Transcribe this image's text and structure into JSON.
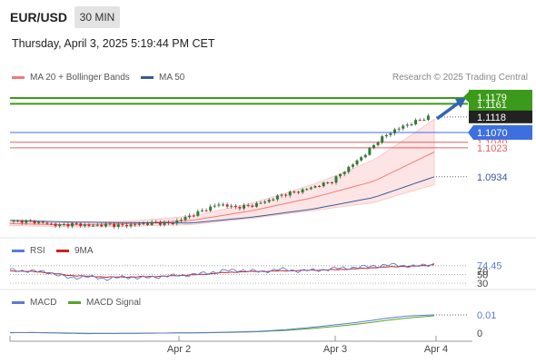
{
  "header": {
    "symbol": "EUR/USD",
    "timeframe": "30 MIN",
    "datetime": "Thursday, April 3, 2025 5:19:44 PM CET"
  },
  "legend": {
    "ma20_label": "MA 20 + Bollinger Bands",
    "ma50_label": "MA 50",
    "source": "Research © 2025 Trading Central",
    "rsi_label": "RSI",
    "rsi_ma_label": "9MA",
    "macd_label": "MACD",
    "macd_signal_label": "MACD Signal"
  },
  "colors": {
    "ma20": "#f07a7a",
    "ma50": "#3b5998",
    "candle_up": "#2e7d32",
    "candle_down": "#c62828",
    "resistance": "#3c9a1a",
    "support_blue": "#3d6fe0",
    "support_red": "#e36060",
    "arrow": "#2f66b3",
    "rsi": "#5b7bd6",
    "rsi_ma": "#cc2222",
    "macd": "#5b7bd6",
    "macd_signal": "#55a52a"
  },
  "price_labels": {
    "resistance_1": "1.1179",
    "resistance_2": "1.1161",
    "last_price": "1.1118",
    "pivot": "1.1070",
    "support_1": "1.1040",
    "support_2": "1.1023",
    "ma50_value": "1.0934"
  },
  "rsi_labels": {
    "value": "74.45",
    "level_70": "70",
    "level_50": "50",
    "level_30": "30"
  },
  "macd_labels": {
    "value": "0.01",
    "zero": "0"
  },
  "x_labels": [
    "Apr 2",
    "Apr 3",
    "Apr 4"
  ],
  "chart_data": [
    {
      "type": "candlestick",
      "title": "EUR/USD 30 MIN",
      "xlabel": "",
      "ylabel": "",
      "x_ticks": [
        "Apr 2",
        "Apr 3",
        "Apr 4"
      ],
      "ylim": [
        1.078,
        1.119
      ],
      "grid": false,
      "legend_position": "top-left",
      "series": [
        {
          "name": "MA 20 + Bollinger Bands",
          "values": [
            1.079,
            1.0786,
            1.079,
            1.08,
            1.083,
            1.087,
            1.092,
            1.101
          ]
        },
        {
          "name": "MA 50",
          "values": [
            1.08,
            1.0795,
            1.0793,
            1.0792,
            1.081,
            1.0835,
            1.087,
            1.0934
          ]
        }
      ],
      "close_path": [
        1.0797,
        1.0798,
        1.0793,
        1.0785,
        1.0789,
        1.0783,
        1.0787,
        1.0784,
        1.0788,
        1.0792,
        1.079,
        1.081,
        1.083,
        1.085,
        1.084,
        1.0845,
        1.086,
        1.088,
        1.089,
        1.0905,
        1.092,
        1.096,
        1.1,
        1.105,
        1.108,
        1.11,
        1.1118
      ],
      "levels": [
        1.1179,
        1.1161,
        1.107,
        1.104,
        1.1023
      ],
      "last_price": 1.1118,
      "target": 1.1179
    },
    {
      "type": "line",
      "title": "RSI",
      "ylim": [
        30,
        80
      ],
      "y_ticks": [
        30,
        50,
        70
      ],
      "series": [
        {
          "name": "RSI",
          "values": [
            60,
            58,
            55,
            42,
            45,
            40,
            44,
            42,
            46,
            48,
            52,
            58,
            60,
            56,
            62,
            58,
            60,
            64,
            66,
            70,
            72,
            68,
            74.45
          ]
        },
        {
          "name": "9MA",
          "values": [
            58,
            57,
            54,
            48,
            46,
            44,
            44,
            45,
            46,
            48,
            50,
            54,
            56,
            57,
            58,
            59,
            60,
            61,
            63,
            66,
            68,
            69,
            72
          ]
        }
      ],
      "last_value": 74.45
    },
    {
      "type": "line",
      "title": "MACD",
      "y_ticks": [
        0
      ],
      "series": [
        {
          "name": "MACD",
          "values": [
            0.0002,
            0.0003,
            0.0,
            -0.0003,
            -0.0002,
            -0.0001,
            0.0,
            0.0001,
            0.0003,
            0.0006,
            0.001,
            0.0018,
            0.003,
            0.0045,
            0.006,
            0.008,
            0.0095,
            0.01
          ]
        },
        {
          "name": "MACD Signal",
          "values": [
            0.0002,
            0.0003,
            0.0001,
            -0.0001,
            -0.0002,
            -0.0001,
            0.0,
            0.0001,
            0.0002,
            0.0004,
            0.0008,
            0.0014,
            0.0024,
            0.0036,
            0.005,
            0.0068,
            0.0084,
            0.0095
          ]
        }
      ],
      "last_value": 0.01
    }
  ]
}
